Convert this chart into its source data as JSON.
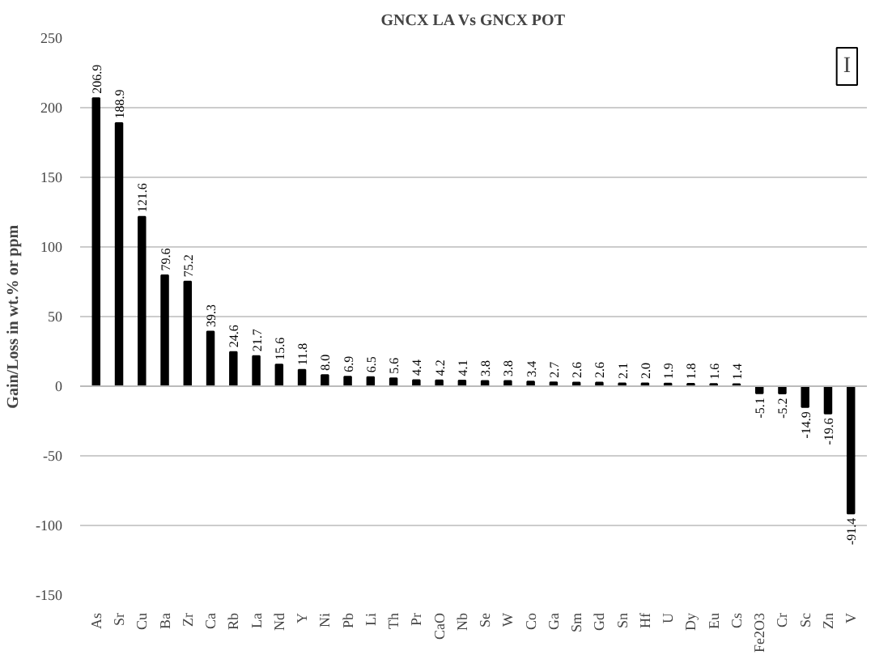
{
  "chart_data": {
    "type": "bar",
    "title": "GNCX LA Vs GNCX POT",
    "ylabel": "Gain/Loss in wt.% or ppm",
    "annotations": [
      "I"
    ],
    "categories": [
      "As",
      "Sr",
      "Cu",
      "Ba",
      "Zr",
      "Ca",
      "Rb",
      "La",
      "Nd",
      "Y",
      "Ni",
      "Pb",
      "Li",
      "Th",
      "Pr",
      "CaO",
      "Nb",
      "Se",
      "W",
      "Co",
      "Ga",
      "Sm",
      "Gd",
      "Sn",
      "Hf",
      "U",
      "Dy",
      "Eu",
      "Cs",
      "Fe2O3",
      "Cr",
      "Sc",
      "Zn",
      "V"
    ],
    "values": [
      206.9,
      188.9,
      121.6,
      79.6,
      75.2,
      39.3,
      24.6,
      21.7,
      15.6,
      11.8,
      8.0,
      6.9,
      6.5,
      5.6,
      4.4,
      4.2,
      4.1,
      3.8,
      3.8,
      3.4,
      2.7,
      2.6,
      2.6,
      2.1,
      2.0,
      1.9,
      1.8,
      1.6,
      1.4,
      -5.1,
      -5.2,
      -14.9,
      -19.6,
      -91.4
    ],
    "value_labels": [
      "206.9",
      "188.9",
      "121.6",
      "79.6",
      "75.2",
      "39.3",
      "24.6",
      "21.7",
      "15.6",
      "11.8",
      "8.0",
      "6.9",
      "6.5",
      "5.6",
      "4.4",
      "4.2",
      "4.1",
      "3.8",
      "3.8",
      "3.4",
      "2.7",
      "2.6",
      "2.6",
      "2.1",
      "2.0",
      "1.9",
      "1.8",
      "1.6",
      "1.4",
      "-5.1",
      "-5.2",
      "-14.9",
      "-19.6",
      "-91.4"
    ],
    "color": "#000000",
    "ylim": [
      -150,
      250
    ],
    "yticks": [
      -150,
      -100,
      -50,
      0,
      50,
      100,
      150,
      200,
      250
    ],
    "grid": "y"
  }
}
